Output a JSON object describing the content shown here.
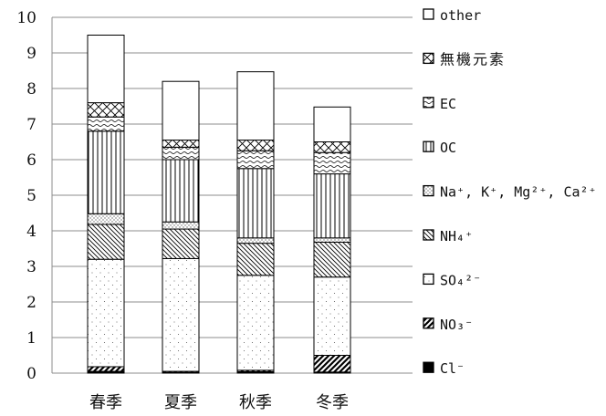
{
  "chart_data": {
    "type": "bar",
    "stacked": true,
    "title": "",
    "xlabel": "",
    "ylabel": "",
    "ylim": [
      0,
      10
    ],
    "yticks": [
      "0",
      "1",
      "2",
      "3",
      "4",
      "5",
      "6",
      "7",
      "8",
      "9",
      "10"
    ],
    "grid": true,
    "legend_position": "right",
    "categories": [
      "春季",
      "夏季",
      "秋季",
      "冬季"
    ],
    "series": [
      {
        "name": "Cl⁻",
        "pattern": "solid",
        "values": [
          0.05,
          0.02,
          0.04,
          0.03
        ]
      },
      {
        "name": "NO₃⁻",
        "pattern": "hatch",
        "values": [
          0.13,
          0.03,
          0.04,
          0.47
        ]
      },
      {
        "name": "SO₄²⁻",
        "pattern": "dots",
        "values": [
          3.02,
          3.17,
          2.67,
          2.2
        ]
      },
      {
        "name": "NH₄⁺",
        "pattern": "backslash",
        "values": [
          0.98,
          0.83,
          0.9,
          0.98
        ]
      },
      {
        "name": "Na⁺, K⁺, Mg²⁺, Ca²⁺",
        "pattern": "densedots",
        "values": [
          0.3,
          0.2,
          0.15,
          0.12
        ]
      },
      {
        "name": "OC",
        "pattern": "vlines",
        "values": [
          2.32,
          1.75,
          1.95,
          1.8
        ]
      },
      {
        "name": "EC",
        "pattern": "wavy",
        "values": [
          0.4,
          0.35,
          0.5,
          0.6
        ]
      },
      {
        "name": "無機元素",
        "pattern": "crosshatch",
        "values": [
          0.4,
          0.2,
          0.3,
          0.3
        ]
      },
      {
        "name": "other",
        "pattern": "empty",
        "values": [
          1.9,
          1.65,
          1.92,
          0.98
        ]
      }
    ]
  }
}
